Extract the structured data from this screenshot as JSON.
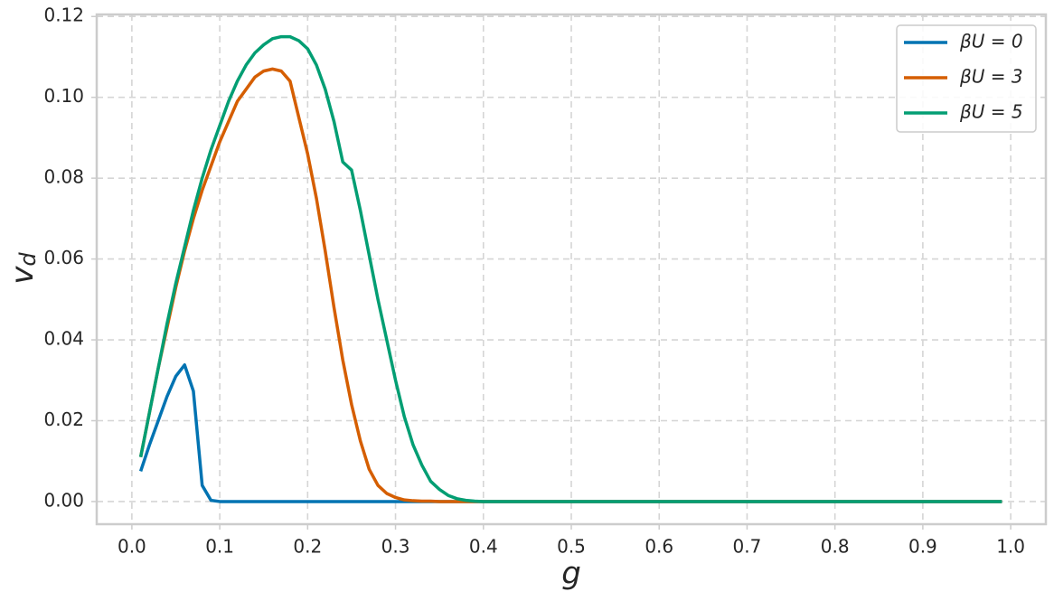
{
  "chart_data": {
    "type": "line",
    "x_label": "g",
    "y_label": "vd",
    "xlim": [
      -0.04,
      1.04
    ],
    "ylim": [
      -0.0056,
      0.1205
    ],
    "xticks": [
      {
        "value": 0,
        "label": "0.0"
      },
      0.1,
      0.2,
      0.3,
      0.4,
      0.5,
      0.6,
      0.7,
      0.8,
      0.9,
      {
        "value": 1,
        "label": "1.0"
      }
    ],
    "yticks": [
      {
        "value": 0,
        "label": "0.00"
      },
      {
        "value": 0.02,
        "label": "0.02"
      },
      {
        "value": 0.04,
        "label": "0.04"
      },
      {
        "value": 0.06,
        "label": "0.06"
      },
      {
        "value": 0.08,
        "label": "0.08"
      },
      {
        "value": 0.1,
        "label": "0.10"
      },
      {
        "value": 0.12,
        "label": "0.12"
      }
    ],
    "grid": true,
    "legend": "upper right",
    "x": [
      0.01,
      0.02,
      0.03,
      0.04,
      0.05,
      0.06,
      0.07,
      0.08,
      0.09,
      0.1,
      0.11,
      0.12,
      0.13,
      0.14,
      0.15,
      0.16,
      0.17,
      0.18,
      0.19,
      0.2,
      0.21,
      0.22,
      0.23,
      0.24,
      0.25,
      0.26,
      0.27,
      0.28,
      0.29,
      0.3,
      0.31,
      0.32,
      0.33,
      0.34,
      0.35,
      0.36,
      0.37,
      0.38,
      0.39,
      0.4,
      0.41,
      0.42,
      0.43,
      0.44,
      0.45,
      0.5,
      0.6,
      0.7,
      0.8,
      0.9,
      0.99
    ],
    "series": [
      {
        "name": "βU = 0",
        "color": "#0173b2",
        "values": [
          0.0075,
          0.014,
          0.02,
          0.026,
          0.031,
          0.0338,
          0.0273,
          0.004,
          0.0003,
          0,
          0,
          0,
          0,
          0,
          0,
          0,
          0,
          0,
          0,
          0,
          0,
          0,
          0,
          0,
          0,
          0,
          0,
          0,
          0,
          0,
          0,
          0,
          0,
          0,
          0,
          0,
          0,
          0,
          0,
          0,
          0,
          0,
          0,
          0,
          0,
          0,
          0,
          0,
          0,
          0,
          0
        ]
      },
      {
        "name": "βU = 3",
        "color": "#d55e00",
        "values": [
          0.011,
          0.022,
          0.033,
          0.043,
          0.053,
          0.062,
          0.07,
          0.077,
          0.083,
          0.089,
          0.094,
          0.099,
          0.102,
          0.105,
          0.1065,
          0.107,
          0.1065,
          0.104,
          0.095,
          0.086,
          0.075,
          0.062,
          0.048,
          0.035,
          0.024,
          0.015,
          0.008,
          0.004,
          0.002,
          0.001,
          0.0004,
          0.0002,
          0.0001,
          0.0001,
          0,
          0,
          0,
          0,
          0,
          0,
          0,
          0,
          0,
          0,
          0,
          0,
          0,
          0,
          0,
          0,
          0
        ]
      },
      {
        "name": "βU = 5",
        "color": "#029e73",
        "values": [
          0.011,
          0.022,
          0.033,
          0.044,
          0.054,
          0.063,
          0.072,
          0.08,
          0.087,
          0.093,
          0.099,
          0.104,
          0.108,
          0.111,
          0.113,
          0.1145,
          0.115,
          0.115,
          0.114,
          0.112,
          0.108,
          0.102,
          0.094,
          0.084,
          0.082,
          0.072,
          0.061,
          0.05,
          0.04,
          0.03,
          0.021,
          0.014,
          0.009,
          0.005,
          0.003,
          0.0015,
          0.0007,
          0.0003,
          0.0001,
          0,
          0,
          0,
          0,
          0,
          0,
          0,
          0,
          0,
          0,
          0,
          0
        ]
      }
    ]
  }
}
